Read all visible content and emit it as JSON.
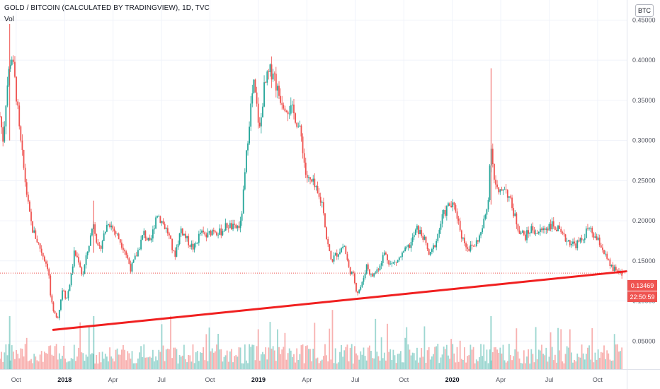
{
  "header": {
    "title": "GOLD / BITCOIN (CALCULATED BY TRADINGVIEW), 1D, TVC",
    "volume_label": "Vol",
    "currency_badge": "BTC"
  },
  "price_tags": {
    "last_price": "0.13469",
    "countdown": "22:50:59",
    "color": "#ef5350"
  },
  "colors": {
    "up": "#26a69a",
    "down": "#ef5350",
    "trendline": "#f02020",
    "grid": "#f0f3fa"
  },
  "chart_data": {
    "type": "candlestick",
    "title": "GOLD / BITCOIN (CALCULATED BY TRADINGVIEW), 1D, TVC",
    "y_ticks": [
      "0.45000",
      "0.40000",
      "0.35000",
      "0.30000",
      "0.25000",
      "0.20000",
      "0.15000",
      "0.10000",
      "0.05000"
    ],
    "ylim": [
      0.015,
      0.475
    ],
    "x_ticks": [
      {
        "label": "Oct",
        "x": 0.0,
        "bold": false
      },
      {
        "label": "2018",
        "x": 3.0,
        "bold": true
      },
      {
        "label": "Apr",
        "x": 6.0,
        "bold": false
      },
      {
        "label": "Jul",
        "x": 9.0,
        "bold": false
      },
      {
        "label": "Oct",
        "x": 12.0,
        "bold": false
      },
      {
        "label": "2019",
        "x": 15.0,
        "bold": true
      },
      {
        "label": "Apr",
        "x": 18.0,
        "bold": false
      },
      {
        "label": "Jul",
        "x": 21.0,
        "bold": false
      },
      {
        "label": "Oct",
        "x": 24.0,
        "bold": false
      },
      {
        "label": "2020",
        "x": 27.0,
        "bold": true
      },
      {
        "label": "Apr",
        "x": 30.0,
        "bold": false
      },
      {
        "label": "Jul",
        "x": 33.0,
        "bold": false
      },
      {
        "label": "Oct",
        "x": 36.0,
        "bold": false
      }
    ],
    "xlim": [
      -1.0,
      37.8
    ],
    "price_path": [
      [
        -1.0,
        0.33
      ],
      [
        -0.8,
        0.3
      ],
      [
        -0.6,
        0.36
      ],
      [
        -0.3,
        0.41
      ],
      [
        0.0,
        0.36
      ],
      [
        0.2,
        0.31
      ],
      [
        0.5,
        0.26
      ],
      [
        0.8,
        0.21
      ],
      [
        1.0,
        0.19
      ],
      [
        1.3,
        0.175
      ],
      [
        1.5,
        0.165
      ],
      [
        1.7,
        0.155
      ],
      [
        2.0,
        0.14
      ],
      [
        2.1,
        0.11
      ],
      [
        2.3,
        0.085
      ],
      [
        2.6,
        0.08
      ],
      [
        2.9,
        0.12
      ],
      [
        3.1,
        0.1
      ],
      [
        3.4,
        0.13
      ],
      [
        3.6,
        0.16
      ],
      [
        3.9,
        0.15
      ],
      [
        4.1,
        0.13
      ],
      [
        4.5,
        0.17
      ],
      [
        4.8,
        0.2
      ],
      [
        5.1,
        0.16
      ],
      [
        5.4,
        0.18
      ],
      [
        5.7,
        0.2
      ],
      [
        6.0,
        0.19
      ],
      [
        6.3,
        0.18
      ],
      [
        6.7,
        0.165
      ],
      [
        7.1,
        0.14
      ],
      [
        7.5,
        0.16
      ],
      [
        7.9,
        0.185
      ],
      [
        8.3,
        0.17
      ],
      [
        8.7,
        0.21
      ],
      [
        9.0,
        0.2
      ],
      [
        9.4,
        0.185
      ],
      [
        9.8,
        0.155
      ],
      [
        10.2,
        0.19
      ],
      [
        10.6,
        0.175
      ],
      [
        11.0,
        0.165
      ],
      [
        11.4,
        0.185
      ],
      [
        11.8,
        0.18
      ],
      [
        12.2,
        0.19
      ],
      [
        12.6,
        0.185
      ],
      [
        13.1,
        0.195
      ],
      [
        13.5,
        0.19
      ],
      [
        13.9,
        0.195
      ],
      [
        14.1,
        0.24
      ],
      [
        14.4,
        0.32
      ],
      [
        14.7,
        0.37
      ],
      [
        14.9,
        0.34
      ],
      [
        15.1,
        0.31
      ],
      [
        15.3,
        0.36
      ],
      [
        15.6,
        0.38
      ],
      [
        15.9,
        0.39
      ],
      [
        16.2,
        0.36
      ],
      [
        16.5,
        0.35
      ],
      [
        16.9,
        0.34
      ],
      [
        17.3,
        0.33
      ],
      [
        17.7,
        0.3
      ],
      [
        17.9,
        0.26
      ],
      [
        18.1,
        0.25
      ],
      [
        18.4,
        0.245
      ],
      [
        18.7,
        0.23
      ],
      [
        19.0,
        0.22
      ],
      [
        19.2,
        0.18
      ],
      [
        19.5,
        0.15
      ],
      [
        19.9,
        0.16
      ],
      [
        20.3,
        0.17
      ],
      [
        20.6,
        0.14
      ],
      [
        20.9,
        0.13
      ],
      [
        21.1,
        0.11
      ],
      [
        21.4,
        0.12
      ],
      [
        21.7,
        0.145
      ],
      [
        22.0,
        0.13
      ],
      [
        22.4,
        0.14
      ],
      [
        22.8,
        0.16
      ],
      [
        23.2,
        0.145
      ],
      [
        23.6,
        0.15
      ],
      [
        24.0,
        0.16
      ],
      [
        24.4,
        0.17
      ],
      [
        24.8,
        0.19
      ],
      [
        25.2,
        0.18
      ],
      [
        25.6,
        0.155
      ],
      [
        26.0,
        0.175
      ],
      [
        26.4,
        0.205
      ],
      [
        26.8,
        0.22
      ],
      [
        27.2,
        0.215
      ],
      [
        27.6,
        0.18
      ],
      [
        28.0,
        0.165
      ],
      [
        28.4,
        0.17
      ],
      [
        28.8,
        0.185
      ],
      [
        29.2,
        0.22
      ],
      [
        29.4,
        0.3
      ],
      [
        29.6,
        0.25
      ],
      [
        29.9,
        0.23
      ],
      [
        30.2,
        0.245
      ],
      [
        30.5,
        0.23
      ],
      [
        30.8,
        0.21
      ],
      [
        31.1,
        0.19
      ],
      [
        31.5,
        0.18
      ],
      [
        31.9,
        0.19
      ],
      [
        32.3,
        0.185
      ],
      [
        32.7,
        0.19
      ],
      [
        33.1,
        0.195
      ],
      [
        33.5,
        0.19
      ],
      [
        33.8,
        0.18
      ],
      [
        34.2,
        0.175
      ],
      [
        34.6,
        0.17
      ],
      [
        35.0,
        0.175
      ],
      [
        35.4,
        0.19
      ],
      [
        35.8,
        0.18
      ],
      [
        36.2,
        0.17
      ],
      [
        36.6,
        0.15
      ],
      [
        36.9,
        0.14
      ],
      [
        37.3,
        0.137
      ],
      [
        37.5,
        0.1347
      ]
    ],
    "spikes": [
      {
        "x": -0.4,
        "high": 0.445,
        "low": 0.3
      },
      {
        "x": 4.8,
        "high": 0.225,
        "low": 0.16
      },
      {
        "x": 29.4,
        "high": 0.39,
        "low": 0.22
      }
    ],
    "last_price": 0.1347,
    "trendline": {
      "from": [
        2.3,
        0.064
      ],
      "to": [
        37.8,
        0.137
      ],
      "color": "#f02020"
    },
    "grid": true
  }
}
